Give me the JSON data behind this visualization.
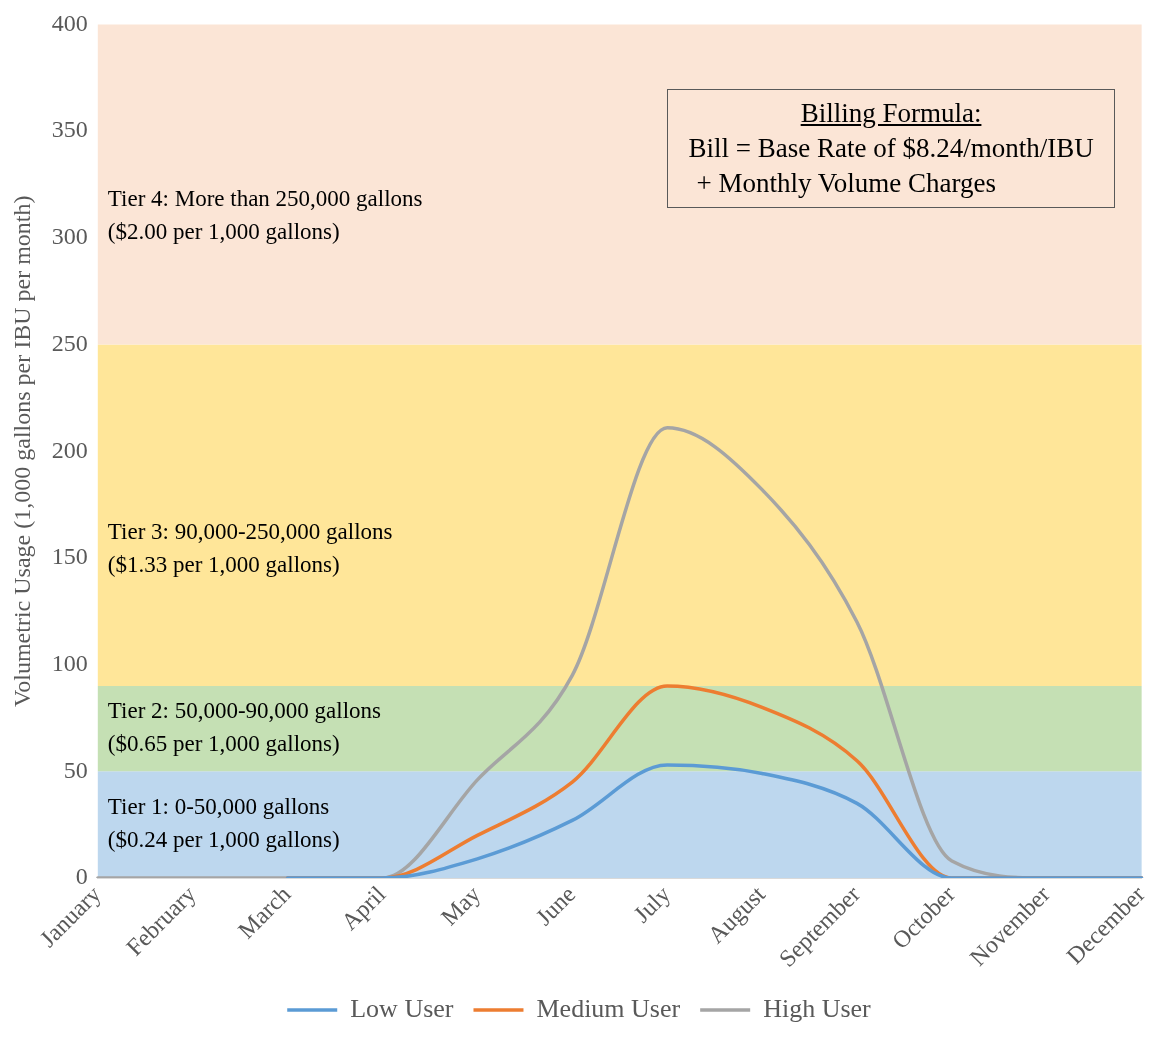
{
  "chart_data": {
    "type": "line",
    "ylabel": "Volumetric Usage (1,000 gallons per IBU per month)",
    "categories": [
      "January",
      "February",
      "March",
      "April",
      "May",
      "June",
      "July",
      "August",
      "September",
      "October",
      "November",
      "December"
    ],
    "series": [
      {
        "name": "Low User",
        "color": "#5b9bd5",
        "values": [
          null,
          null,
          0,
          0,
          9,
          27,
          53,
          49,
          35,
          0,
          0,
          0
        ]
      },
      {
        "name": "Medium User",
        "color": "#ed7d31",
        "values": [
          null,
          null,
          0,
          0,
          20,
          45,
          90,
          80,
          55,
          0,
          0,
          0
        ]
      },
      {
        "name": "High User",
        "color": "#a5a5a5",
        "values": [
          0,
          0,
          0,
          0,
          46,
          95,
          211,
          182,
          120,
          8,
          0,
          0
        ]
      }
    ],
    "ylim": [
      0,
      400
    ],
    "yticks": [
      0,
      50,
      100,
      150,
      200,
      250,
      300,
      350,
      400
    ],
    "bands": [
      {
        "axis": "y",
        "from": 0,
        "to": 50,
        "label": "Tier 1: 0-50,000 gallons\n($0.24 per 1,000 gallons)",
        "color": "#bdd7ee"
      },
      {
        "axis": "y",
        "from": 50,
        "to": 90,
        "label": "Tier 2: 50,000-90,000 gallons\n($0.65 per 1,000 gallons)",
        "color": "#c5e0b4"
      },
      {
        "axis": "y",
        "from": 90,
        "to": 250,
        "label": "Tier 3: 90,000-250,000 gallons\n($1.33 per 1,000 gallons)",
        "color": "#ffe699"
      },
      {
        "axis": "y",
        "from": 250,
        "to": 400,
        "label": "Tier 4: More than 250,000 gallons\n($2.00 per 1,000 gallons)",
        "color": "#fbe5d6"
      }
    ],
    "annotations": [
      "Billing Formula:",
      "Bill = Base Rate of $8.24/month/IBU",
      "+ Monthly Volume Charges"
    ],
    "grid": false,
    "legend": "bottom",
    "marker": "none",
    "line_style": "solid"
  }
}
